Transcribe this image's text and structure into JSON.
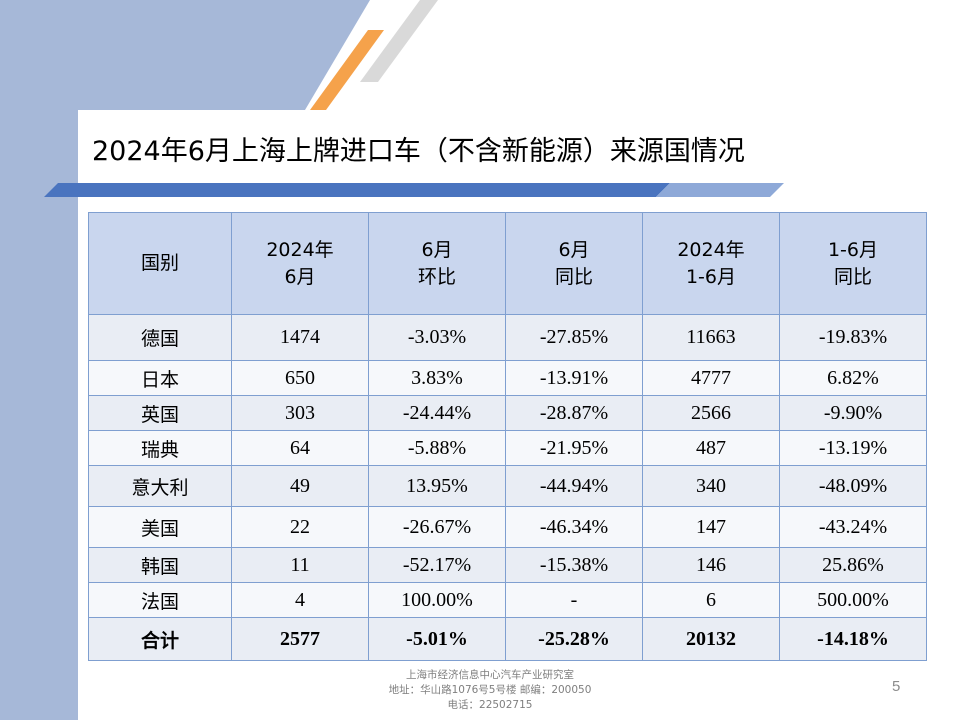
{
  "slide": {
    "title": "2024年6月上海上牌进口车（不含新能源）来源国情况",
    "page_number": "5"
  },
  "table": {
    "headers": [
      {
        "line1": "国别",
        "line2": ""
      },
      {
        "line1": "2024年",
        "line2": "6月"
      },
      {
        "line1": "6月",
        "line2": "环比"
      },
      {
        "line1": "6月",
        "line2": "同比"
      },
      {
        "line1": "2024年",
        "line2": "1-6月"
      },
      {
        "line1": "1-6月",
        "line2": "同比"
      }
    ],
    "rows": [
      [
        "德国",
        "1474",
        "-3.03%",
        "-27.85%",
        "11663",
        "-19.83%"
      ],
      [
        "日本",
        "650",
        "3.83%",
        "-13.91%",
        "4777",
        "6.82%"
      ],
      [
        "英国",
        "303",
        "-24.44%",
        "-28.87%",
        "2566",
        "-9.90%"
      ],
      [
        "瑞典",
        "64",
        "-5.88%",
        "-21.95%",
        "487",
        "-13.19%"
      ],
      [
        "意大利",
        "49",
        "13.95%",
        "-44.94%",
        "340",
        "-48.09%"
      ],
      [
        "美国",
        "22",
        "-26.67%",
        "-46.34%",
        "147",
        "-43.24%"
      ],
      [
        "韩国",
        "11",
        "-52.17%",
        "-15.38%",
        "146",
        "25.86%"
      ],
      [
        "法国",
        "4",
        "100.00%",
        "-",
        "6",
        "500.00%"
      ]
    ],
    "total": [
      "合计",
      "2577",
      "-5.01%",
      "-25.28%",
      "20132",
      "-14.18%"
    ]
  },
  "footer": {
    "line1": "上海市经济信息中心汽车产业研究室",
    "line2": "地址：华山路1076号5号楼   邮编：200050",
    "line3": "电话：22502715"
  },
  "colors": {
    "background_band": "#a6b8d8",
    "title_bar_dark": "#4a74bf",
    "title_bar_light": "#8ea9d8",
    "accent_orange": "#f5a24b",
    "header_fill": "#c9d6ee",
    "row_fill": "#e9edf4"
  }
}
